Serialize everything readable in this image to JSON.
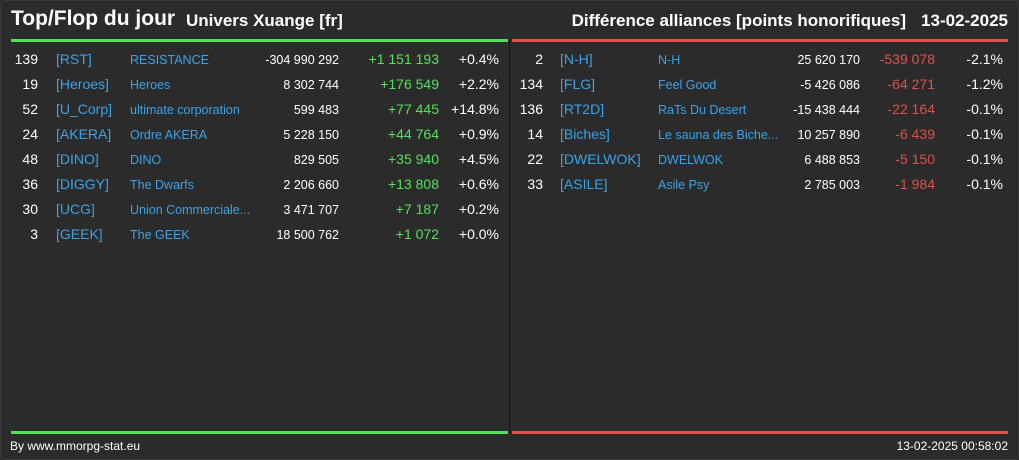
{
  "header": {
    "title": "Top/Flop du jour",
    "universe": "Univers Xuange [fr]",
    "subtitle": "Différence alliances [points honorifiques]",
    "date": "13-02-2025"
  },
  "colors": {
    "positive": "#55e05c",
    "negative": "#e0514b",
    "tag": "#3aa3e8",
    "background": "#2b2b2b"
  },
  "top": [
    {
      "rank": "139",
      "tag": "[RST]",
      "name": "RESISTANCE",
      "points": "-304 990 292",
      "diff": "+1 151 193",
      "pct": "+0.4%"
    },
    {
      "rank": "19",
      "tag": "[Heroes]",
      "name": "Heroes",
      "points": "8 302 744",
      "diff": "+176 549",
      "pct": "+2.2%"
    },
    {
      "rank": "52",
      "tag": "[U_Corp]",
      "name": "ultimate corporation",
      "points": "599 483",
      "diff": "+77 445",
      "pct": "+14.8%"
    },
    {
      "rank": "24",
      "tag": "[AKERA]",
      "name": "Ordre AKERA",
      "points": "5 228 150",
      "diff": "+44 764",
      "pct": "+0.9%"
    },
    {
      "rank": "48",
      "tag": "[DINO]",
      "name": "DINO",
      "points": "829 505",
      "diff": "+35 940",
      "pct": "+4.5%"
    },
    {
      "rank": "36",
      "tag": "[DIGGY]",
      "name": "The Dwarfs",
      "points": "2 206 660",
      "diff": "+13 808",
      "pct": "+0.6%"
    },
    {
      "rank": "30",
      "tag": "[UCG]",
      "name": "Union Commerciale...",
      "points": "3 471 707",
      "diff": "+7 187",
      "pct": "+0.2%"
    },
    {
      "rank": "3",
      "tag": "[GEEK]",
      "name": "The GEEK",
      "points": "18 500 762",
      "diff": "+1 072",
      "pct": "+0.0%"
    }
  ],
  "flop": [
    {
      "rank": "2",
      "tag": "[N-H]",
      "name": "N-H",
      "points": "25 620 170",
      "diff": "-539 078",
      "pct": "-2.1%"
    },
    {
      "rank": "134",
      "tag": "[FLG]",
      "name": "Feel Good",
      "points": "-5 426 086",
      "diff": "-64 271",
      "pct": "-1.2%"
    },
    {
      "rank": "136",
      "tag": "[RT2D]",
      "name": "RaTs Du Desert",
      "points": "-15 438 444",
      "diff": "-22 164",
      "pct": "-0.1%"
    },
    {
      "rank": "14",
      "tag": "[Biches]",
      "name": "Le sauna des Biche...",
      "points": "10 257 890",
      "diff": "-6 439",
      "pct": "-0.1%"
    },
    {
      "rank": "22",
      "tag": "[DWELWOK]",
      "name": "DWELWOK",
      "points": "6 488 853",
      "diff": "-5 150",
      "pct": "-0.1%"
    },
    {
      "rank": "33",
      "tag": "[ASILE]",
      "name": "Asile Psy",
      "points": "2 785 003",
      "diff": "-1 984",
      "pct": "-0.1%"
    }
  ],
  "footer": {
    "source": "By www.mmorpg-stat.eu",
    "timestamp": "13-02-2025 00:58:02"
  }
}
